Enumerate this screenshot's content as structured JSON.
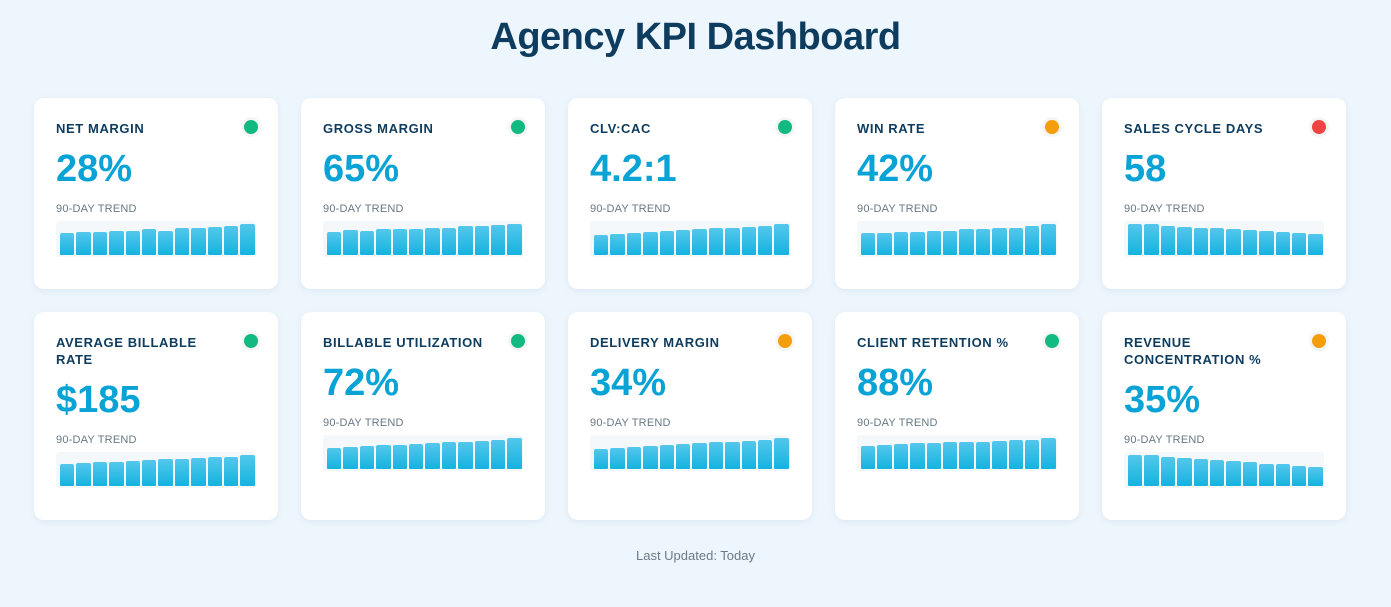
{
  "dashboard": {
    "title": "Agency KPI Dashboard",
    "footer": "Last Updated: Today",
    "trend_label": "90-DAY TREND"
  },
  "status_colors": {
    "green": "#12b981",
    "orange": "#f59e0b",
    "red": "#ef4444"
  },
  "kpis": [
    {
      "label": "NET MARGIN",
      "value": "28%",
      "status": "green",
      "trend": [
        0.7,
        0.72,
        0.72,
        0.74,
        0.76,
        0.8,
        0.76,
        0.84,
        0.84,
        0.88,
        0.92,
        0.98
      ]
    },
    {
      "label": "GROSS MARGIN",
      "value": "65%",
      "status": "green",
      "trend": [
        0.72,
        0.78,
        0.74,
        0.8,
        0.8,
        0.82,
        0.85,
        0.85,
        0.9,
        0.9,
        0.94,
        0.98
      ]
    },
    {
      "label": "CLV:CAC",
      "value": "4.2:1",
      "status": "green",
      "trend": [
        0.62,
        0.66,
        0.7,
        0.72,
        0.76,
        0.78,
        0.82,
        0.84,
        0.86,
        0.88,
        0.9,
        0.98
      ]
    },
    {
      "label": "WIN RATE",
      "value": "42%",
      "status": "orange",
      "trend": [
        0.68,
        0.7,
        0.72,
        0.72,
        0.76,
        0.76,
        0.8,
        0.82,
        0.84,
        0.86,
        0.9,
        0.96
      ]
    },
    {
      "label": "SALES CYCLE DAYS",
      "value": "58",
      "status": "red",
      "trend": [
        0.98,
        0.96,
        0.92,
        0.88,
        0.86,
        0.84,
        0.8,
        0.78,
        0.74,
        0.72,
        0.7,
        0.66
      ]
    },
    {
      "label": "AVERAGE BILLABLE RATE",
      "value": "$185",
      "status": "green",
      "trend": [
        0.7,
        0.72,
        0.74,
        0.76,
        0.78,
        0.8,
        0.84,
        0.86,
        0.88,
        0.9,
        0.92,
        0.96
      ]
    },
    {
      "label": "BILLABLE UTILIZATION",
      "value": "72%",
      "status": "green",
      "trend": [
        0.66,
        0.7,
        0.72,
        0.74,
        0.76,
        0.78,
        0.82,
        0.84,
        0.86,
        0.88,
        0.92,
        0.98
      ]
    },
    {
      "label": "DELIVERY MARGIN",
      "value": "34%",
      "status": "orange",
      "trend": [
        0.64,
        0.66,
        0.7,
        0.72,
        0.76,
        0.78,
        0.82,
        0.84,
        0.86,
        0.88,
        0.92,
        0.98
      ]
    },
    {
      "label": "CLIENT RETENTION %",
      "value": "88%",
      "status": "green",
      "trend": [
        0.72,
        0.76,
        0.78,
        0.8,
        0.82,
        0.84,
        0.86,
        0.86,
        0.88,
        0.9,
        0.92,
        0.98
      ]
    },
    {
      "label": "REVENUE CONCENTRATION %",
      "value": "35%",
      "status": "orange",
      "trend": [
        0.98,
        0.96,
        0.92,
        0.88,
        0.86,
        0.82,
        0.78,
        0.74,
        0.7,
        0.68,
        0.64,
        0.6
      ]
    }
  ]
}
